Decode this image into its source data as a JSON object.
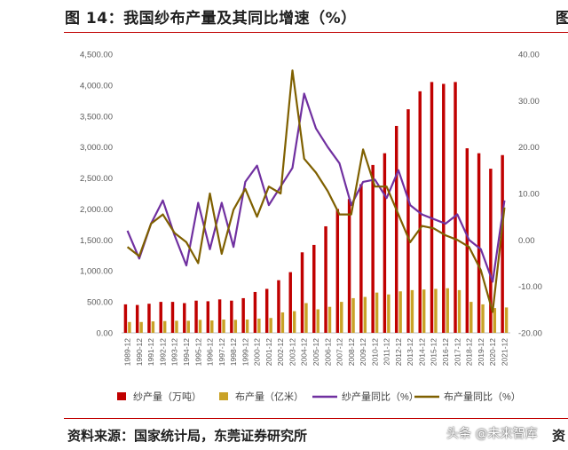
{
  "header": {
    "title": "图 14：我国纱布产量及其同比增速（%）",
    "title_clipped": "图"
  },
  "footer": {
    "source": "资料来源：国家统计局，东莞证券研究所",
    "source_clipped": "资",
    "watermark": "头条 @未来智库"
  },
  "colors": {
    "yarn_bar": "#c00000",
    "cloth_bar": "#c9a227",
    "yarn_line": "#7030a0",
    "cloth_line": "#7f6000",
    "rule": "#c00000",
    "axis_text": "#595959"
  },
  "chart_data": {
    "type": "bar",
    "categories": [
      "1989-12",
      "1990-12",
      "1991-12",
      "1992-12",
      "1993-12",
      "1994-12",
      "1995-12",
      "1996-12",
      "1997-12",
      "1998-12",
      "1999-12",
      "2000-12",
      "2001-12",
      "2002-12",
      "2003-12",
      "2004-12",
      "2005-12",
      "2006-12",
      "2007-12",
      "2008-12",
      "2009-12",
      "2010-12",
      "2011-12",
      "2012-12",
      "2013-12",
      "2014-12",
      "2015-12",
      "2016-12",
      "2017-12",
      "2018-12",
      "2019-12",
      "2020-12",
      "2021-12"
    ],
    "yticks_left": [
      "0.00",
      "500.00",
      "1,000.00",
      "1,500.00",
      "2,000.00",
      "2,500.00",
      "3,000.00",
      "3,500.00",
      "4,000.00",
      "4,500.00"
    ],
    "yticks_right": [
      "-20.00",
      "-10.00",
      "0.00",
      "10.00",
      "20.00",
      "30.00",
      "40.00"
    ],
    "ylim_left": [
      0,
      4500
    ],
    "ylim_right": [
      -20,
      40
    ],
    "grid": false,
    "legend_position": "bottom",
    "series": [
      {
        "name": "纱产量（万吨）",
        "kind": "bar",
        "axis": "left",
        "values": [
          460,
          450,
          470,
          500,
          500,
          480,
          520,
          510,
          540,
          520,
          560,
          660,
          710,
          850,
          980,
          1300,
          1420,
          1720,
          2000,
          2160,
          2400,
          2710,
          2900,
          3340,
          3610,
          3900,
          4050,
          4020,
          4050,
          2980,
          2900,
          2650,
          2870
        ]
      },
      {
        "name": "布产量（亿米）",
        "kind": "bar",
        "axis": "left",
        "values": [
          175,
          175,
          185,
          190,
          195,
          195,
          210,
          200,
          215,
          210,
          215,
          230,
          240,
          330,
          350,
          480,
          380,
          420,
          500,
          560,
          580,
          650,
          620,
          670,
          690,
          700,
          710,
          720,
          690,
          500,
          460,
          400,
          410
        ]
      },
      {
        "name": "纱产量同比（%）",
        "kind": "line",
        "axis": "right",
        "values": [
          2.0,
          -4.0,
          3.5,
          8.5,
          1.0,
          -5.5,
          8.0,
          -2.0,
          8.0,
          -1.5,
          12.5,
          16.0,
          7.5,
          11.5,
          15.5,
          31.5,
          24.0,
          20.0,
          16.5,
          7.5,
          12.5,
          13.0,
          9.0,
          15.0,
          7.5,
          5.5,
          4.5,
          3.5,
          5.5,
          0.0,
          -2.0,
          -9.0,
          8.5
        ]
      },
      {
        "name": "布产量同比（%）",
        "kind": "line",
        "axis": "right",
        "values": [
          -1.5,
          -3.5,
          3.5,
          5.5,
          1.5,
          -0.5,
          -5.0,
          10.0,
          -3.0,
          6.5,
          11.0,
          5.0,
          11.5,
          10.0,
          36.5,
          17.5,
          14.5,
          10.5,
          5.5,
          5.5,
          19.5,
          11.5,
          11.5,
          5.5,
          -0.5,
          3.0,
          2.5,
          1.0,
          0.0,
          -1.5,
          -6.5,
          -15.5,
          7.0
        ]
      }
    ]
  }
}
